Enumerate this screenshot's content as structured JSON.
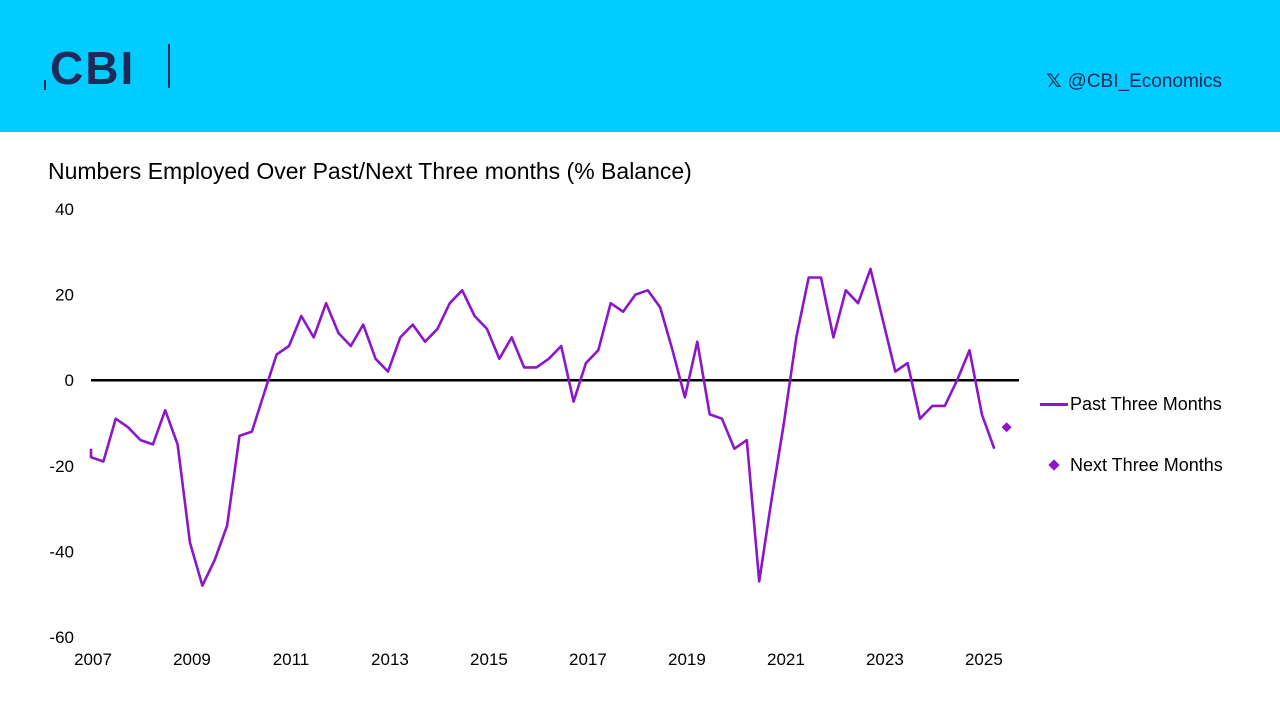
{
  "header": {
    "logo_text": "CBI",
    "social_handle": "@CBI_Economics",
    "social_icon": "x-icon",
    "background_color": "#00CCFF",
    "logo_color": "#1F2A5A"
  },
  "chart_data": {
    "type": "line",
    "title": "Numbers Employed Over Past/Next Three months (% Balance)",
    "xlabel": "",
    "ylabel": "",
    "ylim": [
      -60,
      40
    ],
    "yticks": [
      "40",
      "20",
      "0",
      "-20",
      "-40",
      "-60"
    ],
    "xticks": [
      "2007",
      "2009",
      "2011",
      "2013",
      "2015",
      "2017",
      "2019",
      "2021",
      "2023",
      "2025"
    ],
    "xlim": [
      2007.0,
      2025.75
    ],
    "zero_line": true,
    "grid": false,
    "legend_position": "right",
    "series": [
      {
        "name": "Past Three Months",
        "style": "line",
        "color": "#8B17C9",
        "points": [
          [
            2007.0,
            -16
          ],
          [
            2007.0,
            -18
          ],
          [
            2007.25,
            -19
          ],
          [
            2007.5,
            -9
          ],
          [
            2007.75,
            -11
          ],
          [
            2008.0,
            -14
          ],
          [
            2008.25,
            -15
          ],
          [
            2008.5,
            -7
          ],
          [
            2008.75,
            -15
          ],
          [
            2009.0,
            -38
          ],
          [
            2009.25,
            -48
          ],
          [
            2009.5,
            -42
          ],
          [
            2009.75,
            -34
          ],
          [
            2010.0,
            -13
          ],
          [
            2010.25,
            -12
          ],
          [
            2010.5,
            -3
          ],
          [
            2010.75,
            6
          ],
          [
            2011.0,
            8
          ],
          [
            2011.25,
            15
          ],
          [
            2011.5,
            10
          ],
          [
            2011.75,
            18
          ],
          [
            2012.0,
            11
          ],
          [
            2012.25,
            8
          ],
          [
            2012.5,
            13
          ],
          [
            2012.75,
            5
          ],
          [
            2013.0,
            2
          ],
          [
            2013.25,
            10
          ],
          [
            2013.5,
            13
          ],
          [
            2013.75,
            9
          ],
          [
            2014.0,
            12
          ],
          [
            2014.25,
            18
          ],
          [
            2014.5,
            21
          ],
          [
            2014.75,
            15
          ],
          [
            2015.0,
            12
          ],
          [
            2015.25,
            5
          ],
          [
            2015.5,
            10
          ],
          [
            2015.75,
            3
          ],
          [
            2016.0,
            3
          ],
          [
            2016.25,
            5
          ],
          [
            2016.5,
            8
          ],
          [
            2016.75,
            -5
          ],
          [
            2017.0,
            4
          ],
          [
            2017.25,
            7
          ],
          [
            2017.5,
            18
          ],
          [
            2017.75,
            16
          ],
          [
            2018.0,
            20
          ],
          [
            2018.25,
            21
          ],
          [
            2018.5,
            17
          ],
          [
            2018.75,
            7
          ],
          [
            2019.0,
            -4
          ],
          [
            2019.25,
            9
          ],
          [
            2019.5,
            -8
          ],
          [
            2019.75,
            -9
          ],
          [
            2020.0,
            -16
          ],
          [
            2020.25,
            -14
          ],
          [
            2020.5,
            -47
          ],
          [
            2020.75,
            -28
          ],
          [
            2021.0,
            -10
          ],
          [
            2021.25,
            10
          ],
          [
            2021.5,
            24
          ],
          [
            2021.75,
            24
          ],
          [
            2022.0,
            10
          ],
          [
            2022.25,
            21
          ],
          [
            2022.5,
            18
          ],
          [
            2022.75,
            26
          ],
          [
            2023.0,
            14
          ],
          [
            2023.25,
            2
          ],
          [
            2023.5,
            4
          ],
          [
            2023.75,
            -9
          ],
          [
            2024.0,
            -6
          ],
          [
            2024.25,
            -6
          ],
          [
            2024.5,
            0
          ],
          [
            2024.75,
            7
          ],
          [
            2025.0,
            -8
          ],
          [
            2025.25,
            -16
          ]
        ]
      },
      {
        "name": "Next Three Months",
        "style": "marker",
        "marker": "diamond",
        "color": "#8B17C9",
        "points": [
          [
            2025.5,
            -11
          ]
        ]
      }
    ]
  }
}
